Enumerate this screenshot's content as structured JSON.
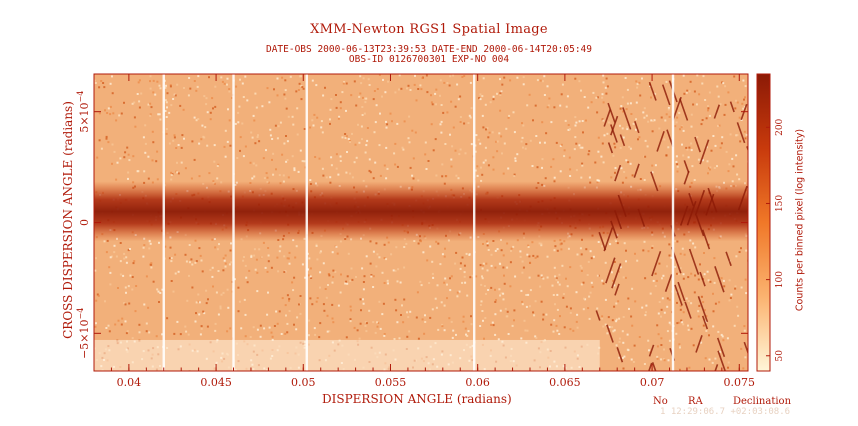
{
  "chart_data": {
    "type": "heatmap",
    "title": "XMM-Newton  RGS1 Spatial Image",
    "subtitle_line1": "DATE-OBS 2000-06-13T23:39:53   DATE-END 2000-06-14T20:05:49",
    "subtitle_line2": "OBS-ID 0126700301 EXP-NO 004",
    "xlabel": "DISPERSION ANGLE (radians)",
    "ylabel": "CROSS DISPERSION ANGLE (radians)",
    "colorbar_label": "Counts per binned pixel (log intensity)",
    "xlim": [
      0.038,
      0.0755
    ],
    "ylim": [
      -0.00067,
      0.00067
    ],
    "x_ticks": [
      {
        "value": 0.04,
        "label": "0.04"
      },
      {
        "value": 0.045,
        "label": "0.045"
      },
      {
        "value": 0.05,
        "label": "0.05"
      },
      {
        "value": 0.055,
        "label": "0.055"
      },
      {
        "value": 0.06,
        "label": "0.06"
      },
      {
        "value": 0.065,
        "label": "0.065"
      },
      {
        "value": 0.07,
        "label": "0.07"
      },
      {
        "value": 0.075,
        "label": "0.075"
      }
    ],
    "y_ticks": [
      {
        "value": -0.0005,
        "label": "−5×10",
        "exp": "−4"
      },
      {
        "value": 0,
        "label": "0",
        "exp": ""
      },
      {
        "value": 0.0005,
        "label": "5×10",
        "exp": "−4"
      }
    ],
    "colorbar": {
      "range": [
        40,
        235
      ],
      "ticks": [
        {
          "value": 50,
          "label": "50"
        },
        {
          "value": 100,
          "label": "100"
        },
        {
          "value": 150,
          "label": "150"
        },
        {
          "value": 200,
          "label": "200"
        }
      ],
      "colors": [
        "#fff6d8",
        "#fbb370",
        "#f07828",
        "#c83a0c",
        "#8c1a06"
      ]
    },
    "source_band_center": 5e-05,
    "bright_column_x": [
      0.042,
      0.046,
      0.0502,
      0.0598,
      0.0712
    ],
    "bright_column_color": "#ffffff",
    "band_color": "#8c1a06",
    "background_color": "#f2b07a"
  },
  "footer": {
    "no_label": "No",
    "ra_label": "RA",
    "dec_label": "Declination",
    "values": "1  12:29:06.7  +02:03:08.6"
  }
}
